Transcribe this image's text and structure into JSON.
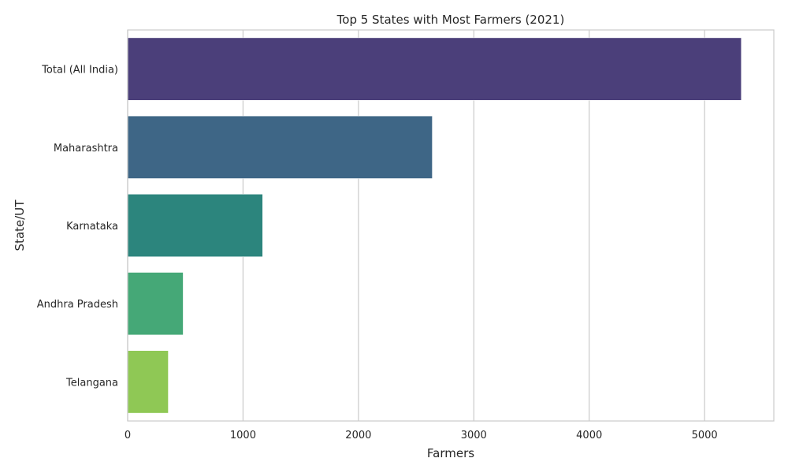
{
  "chart_data": {
    "type": "bar",
    "orientation": "horizontal",
    "title": "Top 5 States with Most Farmers (2021)",
    "xlabel": "Farmers",
    "ylabel": "State/UT",
    "categories": [
      "Total (All India)",
      "Maharashtra",
      "Karnataka",
      "Andhra Pradesh",
      "Telangana"
    ],
    "values": [
      5318,
      2640,
      1170,
      481,
      352
    ],
    "colors": [
      "#4b3f7a",
      "#3e6686",
      "#2c857d",
      "#45a877",
      "#8fc855"
    ],
    "xlim": [
      0,
      5600
    ],
    "xticks": [
      0,
      1000,
      2000,
      3000,
      4000,
      5000
    ],
    "grid": true
  }
}
